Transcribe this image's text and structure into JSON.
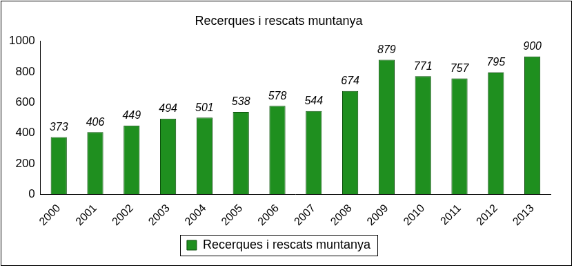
{
  "chart_data": {
    "type": "bar",
    "title": "Recerques i rescats muntanya",
    "categories": [
      "2000",
      "2001",
      "2002",
      "2003",
      "2004",
      "2005",
      "2006",
      "2007",
      "2008",
      "2009",
      "2010",
      "2011",
      "2012",
      "2013"
    ],
    "series": [
      {
        "name": "Recerques i rescats muntanya",
        "color": "#1f8f1f",
        "values": [
          373,
          406,
          449,
          494,
          501,
          538,
          578,
          544,
          674,
          879,
          771,
          757,
          795,
          900
        ]
      }
    ],
    "ylim": [
      0,
      1000
    ],
    "yticks": [
      0,
      200,
      400,
      600,
      800,
      1000
    ],
    "grid": false,
    "legend": "bottom",
    "data_labels": true
  }
}
